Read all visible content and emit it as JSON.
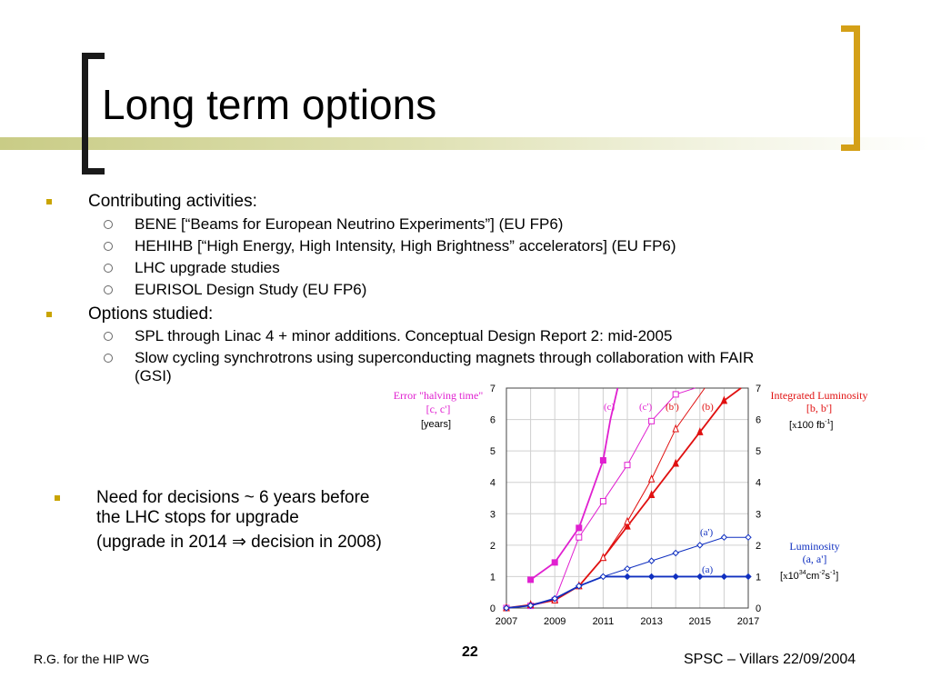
{
  "slide": {
    "title": "Long term options",
    "bullets": [
      {
        "text": "Contributing activities:",
        "sub": [
          "BENE [“Beams for European Neutrino Experiments”] (EU FP6)",
          "HEHIHB [“High Energy, High Intensity, High Brightness” accelerators] (EU FP6)",
          "LHC upgrade studies",
          "EURISOL Design Study (EU FP6)"
        ]
      },
      {
        "text": "Options studied:",
        "sub": [
          "SPL through Linac 4 + minor additions. Conceptual Design Report 2: mid-2005",
          "Slow cycling synchrotrons using superconducting magnets through collaboration with FAIR",
          "(GSI)"
        ]
      }
    ],
    "decision": {
      "line1": "Need for decisions ~ 6 years before",
      "line2": "the LHC stops for upgrade",
      "line3": "(upgrade in 2014 ⇒ decision in 2008)"
    },
    "footer": {
      "left": "R.G. for the HIP WG",
      "page": "22",
      "right": "SPSC – Villars 22/09/2004"
    }
  },
  "chart_data": {
    "type": "line",
    "x_ticks": [
      2007,
      2009,
      2011,
      2013,
      2015,
      2017
    ],
    "y_ticks": [
      0,
      1,
      2,
      3,
      4,
      5,
      6,
      7
    ],
    "xlim": [
      2007,
      2017
    ],
    "ylim": [
      0,
      7
    ],
    "grid": true,
    "left_axis_label": [
      "Error \"halving time\"",
      "[c, c']",
      "[years]"
    ],
    "right_axis_label_top": [
      "Integrated Luminosity",
      "[b, b']",
      "[x100 fb-1]"
    ],
    "right_axis_label_bottom": [
      "Luminosity",
      "(a, a']",
      "[x1034cm-2s-1]"
    ],
    "colors": {
      "c": "#e020d0",
      "b": "#e01010",
      "a": "#1030c0"
    },
    "series": [
      {
        "name": "(c)",
        "key": "c",
        "marker": "filled-square",
        "x": [
          2008,
          2009,
          2010,
          2011,
          2011.3,
          2011.6
        ],
        "y": [
          0.9,
          1.45,
          2.55,
          4.7,
          6.0,
          7.0
        ]
      },
      {
        "name": "(c')",
        "key": "c",
        "marker": "open-square",
        "x": [
          2007,
          2008,
          2009,
          2010,
          2011,
          2012,
          2013,
          2014,
          2014.8
        ],
        "y": [
          0,
          0.07,
          0.25,
          2.25,
          3.4,
          4.55,
          5.95,
          6.8,
          7.0
        ]
      },
      {
        "name": "(b)",
        "key": "b",
        "marker": "filled-triangle",
        "x": [
          2007,
          2008,
          2009,
          2010,
          2011,
          2012,
          2013,
          2014,
          2015,
          2016,
          2016.7
        ],
        "y": [
          0,
          0.1,
          0.25,
          0.7,
          1.6,
          2.6,
          3.6,
          4.6,
          5.6,
          6.6,
          7.0
        ]
      },
      {
        "name": "(b')",
        "key": "b",
        "marker": "open-triangle",
        "x": [
          2007,
          2008,
          2009,
          2010,
          2011,
          2012,
          2013,
          2014,
          2015.2
        ],
        "y": [
          0,
          0.1,
          0.25,
          0.7,
          1.6,
          2.75,
          4.1,
          5.7,
          7.0
        ]
      },
      {
        "name": "(a)",
        "key": "a",
        "marker": "filled-diamond",
        "x": [
          2007,
          2008,
          2009,
          2010,
          2011,
          2012,
          2013,
          2014,
          2015,
          2016,
          2017
        ],
        "y": [
          0,
          0.08,
          0.3,
          0.7,
          1.0,
          1.0,
          1.0,
          1.0,
          1.0,
          1.0,
          1.0
        ]
      },
      {
        "name": "(a')",
        "key": "a",
        "marker": "open-diamond",
        "x": [
          2007,
          2008,
          2009,
          2010,
          2011,
          2012,
          2013,
          2014,
          2015,
          2016,
          2017
        ],
        "y": [
          0,
          0.08,
          0.3,
          0.7,
          1.0,
          1.25,
          1.5,
          1.75,
          2.0,
          2.25,
          2.25
        ]
      }
    ]
  }
}
